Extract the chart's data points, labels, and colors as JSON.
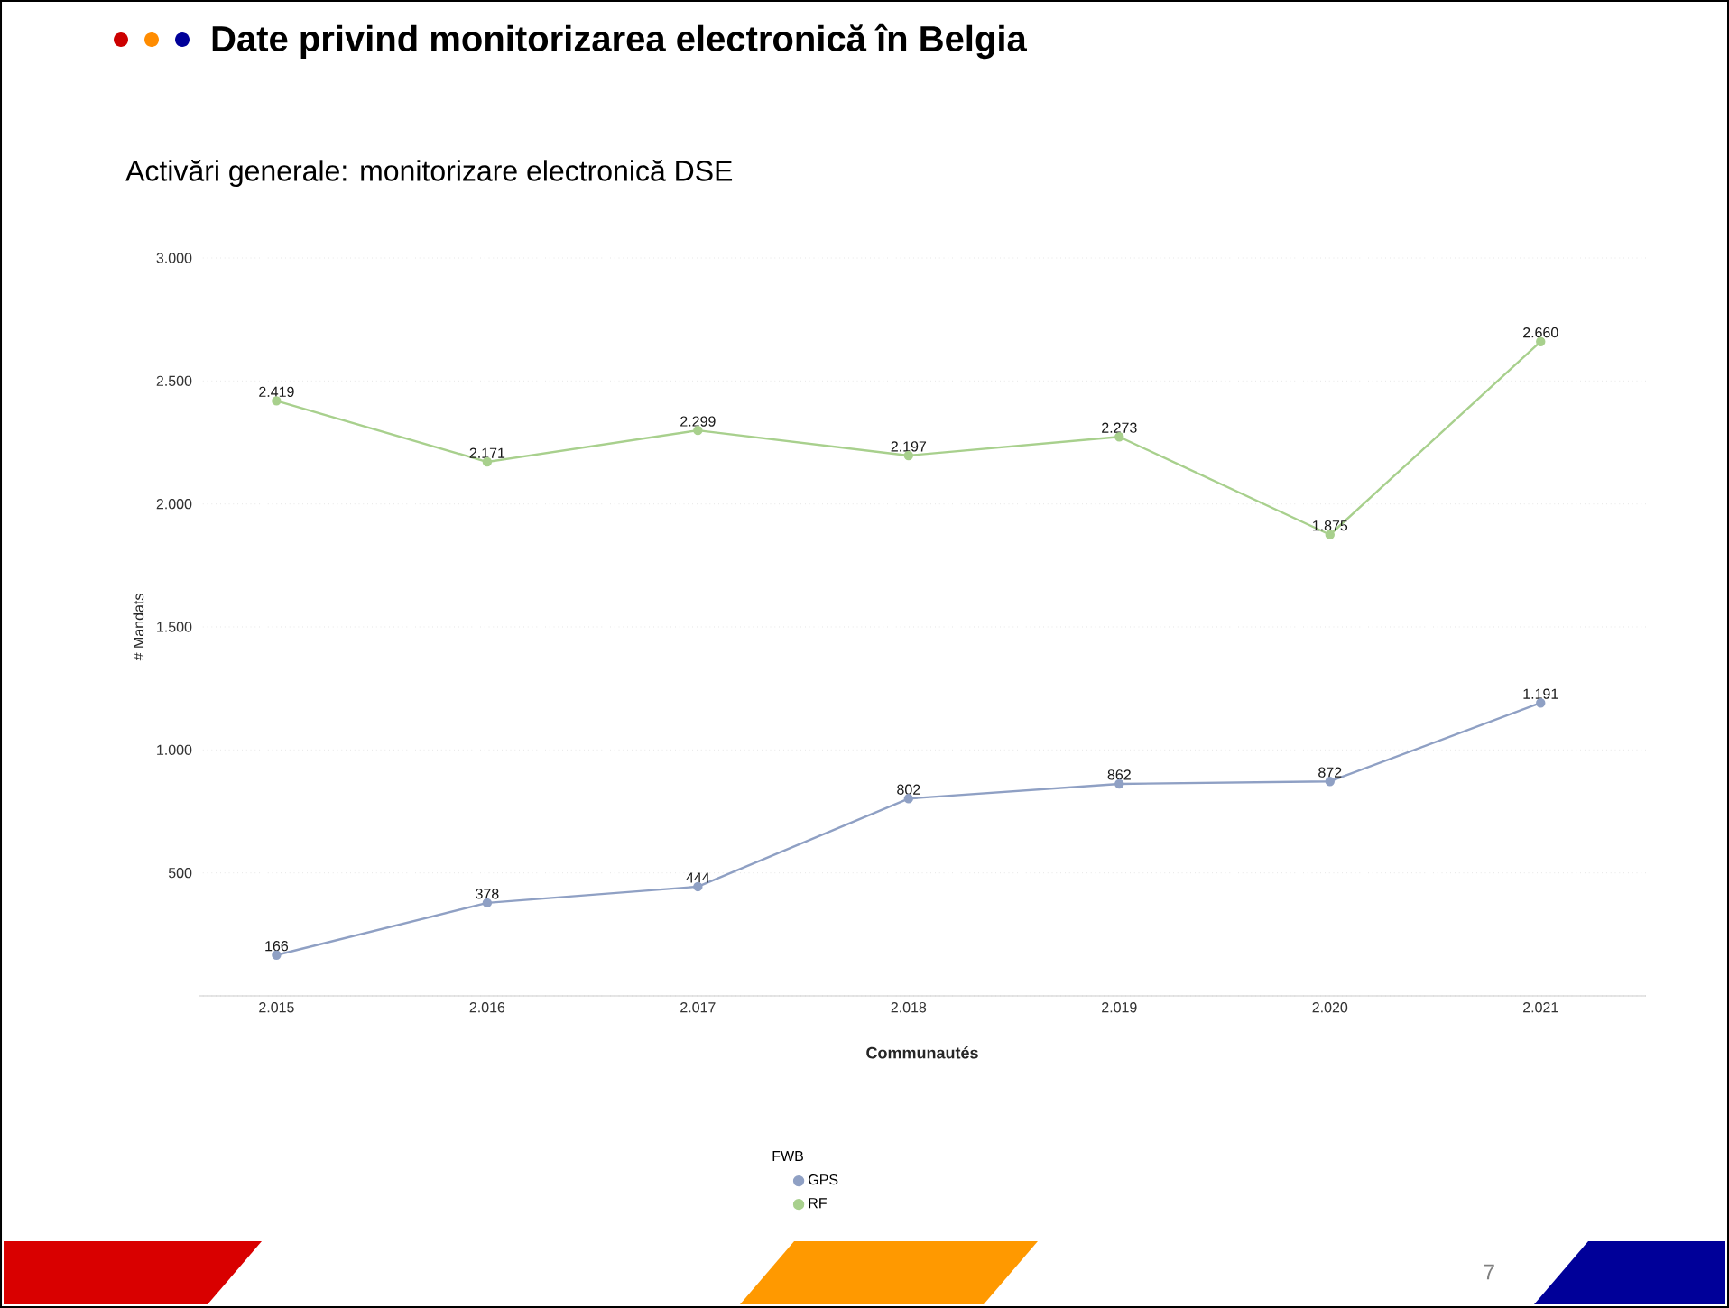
{
  "chart_data": {
    "type": "line",
    "title": "Date privind monitorizarea electronică în Belgia",
    "subtitle": "Activări generale: monitorizare electronică DSE",
    "xlabel": "Communautés",
    "ylabel": "# Mandats",
    "legend_title": "FWB",
    "categories": [
      "2.015",
      "2.016",
      "2.017",
      "2.018",
      "2.019",
      "2.020",
      "2.021"
    ],
    "series": [
      {
        "name": "GPS",
        "color": "#8fa0c4",
        "values": [
          166,
          378,
          444,
          802,
          862,
          872,
          1191
        ],
        "value_labels": [
          "166",
          "378",
          "444",
          "802",
          "862",
          "872",
          "1.191"
        ]
      },
      {
        "name": "RF",
        "color": "#a8d08d",
        "values": [
          2419,
          2171,
          2299,
          2197,
          2273,
          1875,
          2660
        ],
        "value_labels": [
          "2.419",
          "2.171",
          "2.299",
          "2.197",
          "2.273",
          "1.875",
          "2.660"
        ]
      }
    ],
    "ylim": [
      0,
      3000
    ],
    "yticks": [
      {
        "value": 0,
        "label": null
      },
      {
        "value": 500,
        "label": "500"
      },
      {
        "value": 1000,
        "label": "1.000"
      },
      {
        "value": 1500,
        "label": "1.500"
      },
      {
        "value": 2000,
        "label": "2.000"
      },
      {
        "value": 2500,
        "label": "2.500"
      },
      {
        "value": 3000,
        "label": "3.000"
      }
    ],
    "grid": "y",
    "legend": "bottom",
    "marker": "circle",
    "line_style": "solid",
    "annotations": [
      "7"
    ]
  }
}
